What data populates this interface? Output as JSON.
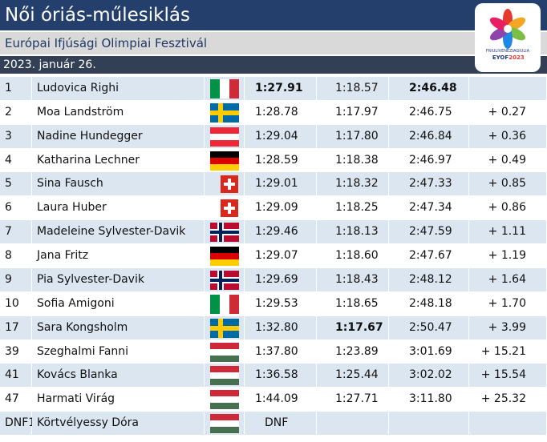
{
  "header": {
    "title": "Női óriás-műlesiklás",
    "subtitle": "Európai Ifjúsági Olimpiai Fesztivál",
    "date": "2023. január 26.",
    "logo": {
      "line1": "FRIULIVENEZIAGIULIA",
      "line2": "EYOF",
      "line3": "2023"
    }
  },
  "table": {
    "rows": [
      [
        "1",
        "Ludovica Righi",
        "1:27.91",
        "1:18.57",
        "2:46.48",
        null
      ],
      [
        "2",
        "Moa Landström",
        "1:28.78",
        "1:17.97",
        "2:46.75",
        "+ 0.27"
      ],
      [
        "3",
        "Nadine Hundegger",
        "1:29.04",
        "1:17.80",
        "2:46.84",
        "+ 0.36"
      ],
      [
        "4",
        "Katharina Lechner",
        "1:28.59",
        "1:18.38",
        "2:46.97",
        "+ 0.49"
      ],
      [
        "5",
        "Sina Fausch",
        "1:29.01",
        "1:18.32",
        "2:47.33",
        "+ 0.85"
      ],
      [
        "6",
        "Laura Huber",
        "1:29.09",
        "1:18.25",
        "2:47.34",
        "+ 0.86"
      ],
      [
        "7",
        "Madeleine Sylvester-Davik",
        "1:29.46",
        "1:18.13",
        "2:47.59",
        "+ 1.11"
      ],
      [
        "8",
        "Jana Fritz",
        "1:29.07",
        "1:18.60",
        "2:47.67",
        "+ 1.19"
      ],
      [
        "9",
        "Pia Sylvester-Davik",
        "1:29.69",
        "1:18.43",
        "2:48.12",
        "+ 1.64"
      ],
      [
        "10",
        "Sofia Amigoni",
        "1:29.53",
        "1:18.65",
        "2:48.18",
        "+ 1.70"
      ],
      [
        "17",
        "Sara Kongsholm",
        "1:32.80",
        "1:17.67",
        "2:50.47",
        "+ 3.99"
      ],
      [
        "39",
        "Szeghalmi Fanni",
        "1:37.80",
        "1:23.89",
        "3:01.69",
        "+ 15.21"
      ],
      [
        "41",
        "Kovács Blanka",
        "1:36.58",
        "1:25.44",
        "3:02.02",
        "+ 15.54"
      ],
      [
        "47",
        "Harmati Virág",
        "1:44.09",
        "1:27.71",
        "3:11.80",
        "+ 25.32"
      ],
      [
        "DNF1",
        "Körtvélyessy Dóra",
        "DNF",
        null,
        null,
        null
      ]
    ]
  }
}
